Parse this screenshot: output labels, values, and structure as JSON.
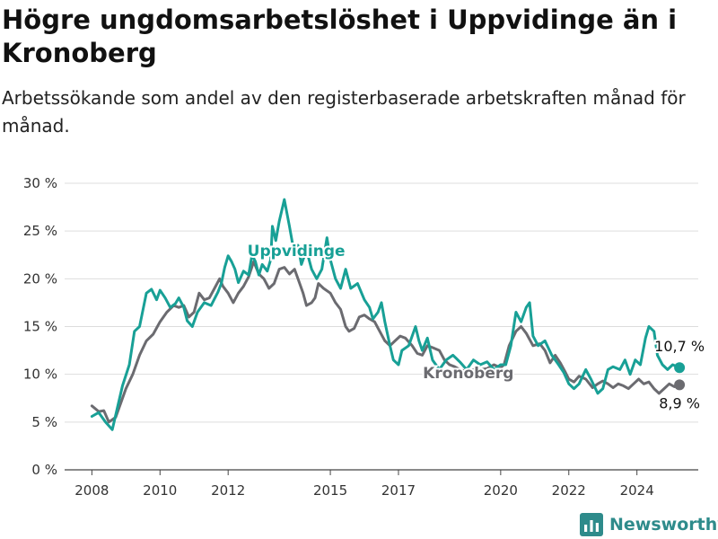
{
  "title": "Högre ungdomsarbetslöshet i Uppvidinge än i Kronoberg",
  "subtitle": "Arbetssökande som andel av den registerbaserade arbetskraften månad för månad.",
  "brand": {
    "name": "Newsworthy",
    "logo_icon": "bar-chart-logo-icon"
  },
  "colors": {
    "uppvidinge": "#18a096",
    "kronoberg": "#6b6b70",
    "grid": "#dddddd",
    "axis": "#444444"
  },
  "chart_data": {
    "type": "line",
    "ylim": [
      0,
      30
    ],
    "xlim": [
      2007.2,
      2025.8
    ],
    "grid": true,
    "yticks": [
      {
        "value": 0,
        "label": "0 %"
      },
      {
        "value": 5,
        "label": "5 %"
      },
      {
        "value": 10,
        "label": "10 %"
      },
      {
        "value": 15,
        "label": "15 %"
      },
      {
        "value": 20,
        "label": "20 %"
      },
      {
        "value": 25,
        "label": "25 %"
      },
      {
        "value": 30,
        "label": "30 %"
      }
    ],
    "xticks": [
      {
        "value": 2008,
        "label": "2008"
      },
      {
        "value": 2010,
        "label": "2010"
      },
      {
        "value": 2012,
        "label": "2012"
      },
      {
        "value": 2015,
        "label": "2015"
      },
      {
        "value": 2017,
        "label": "2017"
      },
      {
        "value": 2020,
        "label": "2020"
      },
      {
        "value": 2022,
        "label": "2022"
      },
      {
        "value": 2024,
        "label": "2024"
      }
    ],
    "series": [
      {
        "name": "Uppvidinge",
        "label_at": [
          2014.0,
          22.4
        ],
        "end_label": "10,7 %",
        "end_value": 10.7,
        "points": [
          [
            2008.0,
            5.6
          ],
          [
            2008.2,
            6.0
          ],
          [
            2008.4,
            5.0
          ],
          [
            2008.6,
            4.2
          ],
          [
            2008.75,
            6.5
          ],
          [
            2008.9,
            8.8
          ],
          [
            2009.1,
            11.0
          ],
          [
            2009.25,
            14.5
          ],
          [
            2009.4,
            15.0
          ],
          [
            2009.6,
            18.5
          ],
          [
            2009.75,
            18.9
          ],
          [
            2009.9,
            17.8
          ],
          [
            2010.0,
            18.8
          ],
          [
            2010.15,
            18.0
          ],
          [
            2010.3,
            17.0
          ],
          [
            2010.45,
            17.4
          ],
          [
            2010.55,
            18.0
          ],
          [
            2010.7,
            17.0
          ],
          [
            2010.8,
            15.6
          ],
          [
            2010.95,
            15.0
          ],
          [
            2011.1,
            16.5
          ],
          [
            2011.3,
            17.5
          ],
          [
            2011.5,
            17.2
          ],
          [
            2011.7,
            18.6
          ],
          [
            2011.8,
            19.5
          ],
          [
            2011.9,
            21.2
          ],
          [
            2012.0,
            22.4
          ],
          [
            2012.1,
            21.8
          ],
          [
            2012.2,
            21.0
          ],
          [
            2012.3,
            19.6
          ],
          [
            2012.45,
            20.8
          ],
          [
            2012.6,
            20.4
          ],
          [
            2012.7,
            22.5
          ],
          [
            2012.8,
            21.8
          ],
          [
            2012.9,
            20.4
          ],
          [
            2013.0,
            21.5
          ],
          [
            2013.15,
            20.8
          ],
          [
            2013.25,
            22.0
          ],
          [
            2013.3,
            25.5
          ],
          [
            2013.4,
            24.0
          ],
          [
            2013.5,
            26.0
          ],
          [
            2013.65,
            28.3
          ],
          [
            2013.8,
            25.5
          ],
          [
            2013.95,
            22.5
          ],
          [
            2014.05,
            23.5
          ],
          [
            2014.15,
            21.5
          ],
          [
            2014.3,
            23.0
          ],
          [
            2014.45,
            21.0
          ],
          [
            2014.6,
            20.0
          ],
          [
            2014.75,
            21.0
          ],
          [
            2014.9,
            24.3
          ],
          [
            2015.0,
            22.0
          ],
          [
            2015.15,
            20.0
          ],
          [
            2015.3,
            19.0
          ],
          [
            2015.45,
            21.0
          ],
          [
            2015.6,
            19.0
          ],
          [
            2015.8,
            19.5
          ],
          [
            2016.0,
            17.8
          ],
          [
            2016.15,
            17.0
          ],
          [
            2016.25,
            15.8
          ],
          [
            2016.4,
            16.5
          ],
          [
            2016.5,
            17.5
          ],
          [
            2016.6,
            15.5
          ],
          [
            2016.75,
            13.0
          ],
          [
            2016.85,
            11.5
          ],
          [
            2017.0,
            11.0
          ],
          [
            2017.1,
            12.5
          ],
          [
            2017.3,
            13.0
          ],
          [
            2017.5,
            15.0
          ],
          [
            2017.6,
            13.5
          ],
          [
            2017.7,
            12.5
          ],
          [
            2017.85,
            13.8
          ],
          [
            2018.0,
            11.5
          ],
          [
            2018.2,
            10.5
          ],
          [
            2018.4,
            11.5
          ],
          [
            2018.6,
            12.0
          ],
          [
            2018.8,
            11.3
          ],
          [
            2019.0,
            10.5
          ],
          [
            2019.2,
            11.5
          ],
          [
            2019.4,
            11.0
          ],
          [
            2019.6,
            11.3
          ],
          [
            2019.8,
            10.5
          ],
          [
            2020.0,
            11.0
          ],
          [
            2020.15,
            11.0
          ],
          [
            2020.3,
            13.0
          ],
          [
            2020.45,
            16.5
          ],
          [
            2020.6,
            15.5
          ],
          [
            2020.75,
            17.0
          ],
          [
            2020.85,
            17.5
          ],
          [
            2020.95,
            14.0
          ],
          [
            2021.1,
            13.0
          ],
          [
            2021.3,
            13.5
          ],
          [
            2021.5,
            12.0
          ],
          [
            2021.7,
            11.0
          ],
          [
            2021.85,
            10.2
          ],
          [
            2022.0,
            9.0
          ],
          [
            2022.15,
            8.5
          ],
          [
            2022.3,
            9.0
          ],
          [
            2022.5,
            10.5
          ],
          [
            2022.65,
            9.5
          ],
          [
            2022.85,
            8.0
          ],
          [
            2023.0,
            8.5
          ],
          [
            2023.15,
            10.5
          ],
          [
            2023.3,
            10.8
          ],
          [
            2023.5,
            10.5
          ],
          [
            2023.65,
            11.5
          ],
          [
            2023.8,
            10.0
          ],
          [
            2023.95,
            11.5
          ],
          [
            2024.1,
            11.0
          ],
          [
            2024.25,
            13.8
          ],
          [
            2024.35,
            15.0
          ],
          [
            2024.5,
            14.5
          ],
          [
            2024.6,
            12.0
          ],
          [
            2024.75,
            11.0
          ],
          [
            2024.9,
            10.5
          ],
          [
            2025.05,
            11.0
          ],
          [
            2025.25,
            10.7
          ]
        ]
      },
      {
        "name": "Kronoberg",
        "label_at": [
          2019.05,
          9.6
        ],
        "end_label": "8,9 %",
        "end_value": 8.9,
        "points": [
          [
            2008.0,
            6.7
          ],
          [
            2008.2,
            6.1
          ],
          [
            2008.35,
            6.2
          ],
          [
            2008.5,
            5.0
          ],
          [
            2008.7,
            5.5
          ],
          [
            2008.85,
            7.0
          ],
          [
            2009.0,
            8.5
          ],
          [
            2009.2,
            10.0
          ],
          [
            2009.4,
            12.0
          ],
          [
            2009.6,
            13.5
          ],
          [
            2009.8,
            14.2
          ],
          [
            2010.0,
            15.5
          ],
          [
            2010.2,
            16.5
          ],
          [
            2010.4,
            17.2
          ],
          [
            2010.55,
            17.0
          ],
          [
            2010.7,
            17.2
          ],
          [
            2010.85,
            16.0
          ],
          [
            2011.0,
            16.5
          ],
          [
            2011.15,
            18.5
          ],
          [
            2011.3,
            17.8
          ],
          [
            2011.45,
            18.0
          ],
          [
            2011.6,
            19.0
          ],
          [
            2011.75,
            20.0
          ],
          [
            2011.85,
            19.2
          ],
          [
            2012.0,
            18.5
          ],
          [
            2012.15,
            17.5
          ],
          [
            2012.3,
            18.5
          ],
          [
            2012.45,
            19.2
          ],
          [
            2012.6,
            20.2
          ],
          [
            2012.75,
            21.8
          ],
          [
            2012.9,
            20.5
          ],
          [
            2013.05,
            20.0
          ],
          [
            2013.2,
            19.0
          ],
          [
            2013.35,
            19.5
          ],
          [
            2013.5,
            21.0
          ],
          [
            2013.65,
            21.2
          ],
          [
            2013.8,
            20.5
          ],
          [
            2013.95,
            21.0
          ],
          [
            2014.05,
            20.0
          ],
          [
            2014.2,
            18.5
          ],
          [
            2014.3,
            17.2
          ],
          [
            2014.45,
            17.5
          ],
          [
            2014.55,
            18.0
          ],
          [
            2014.65,
            19.5
          ],
          [
            2014.8,
            19.0
          ],
          [
            2015.0,
            18.5
          ],
          [
            2015.15,
            17.5
          ],
          [
            2015.3,
            16.8
          ],
          [
            2015.45,
            15.0
          ],
          [
            2015.55,
            14.5
          ],
          [
            2015.7,
            14.8
          ],
          [
            2015.85,
            16.0
          ],
          [
            2016.0,
            16.2
          ],
          [
            2016.15,
            15.8
          ],
          [
            2016.3,
            15.5
          ],
          [
            2016.45,
            14.5
          ],
          [
            2016.6,
            13.5
          ],
          [
            2016.75,
            13.0
          ],
          [
            2016.9,
            13.5
          ],
          [
            2017.05,
            14.0
          ],
          [
            2017.2,
            13.8
          ],
          [
            2017.4,
            13.0
          ],
          [
            2017.55,
            12.2
          ],
          [
            2017.7,
            12.0
          ],
          [
            2017.85,
            13.0
          ],
          [
            2018.0,
            12.8
          ],
          [
            2018.2,
            12.5
          ],
          [
            2018.35,
            11.5
          ],
          [
            2018.5,
            11.0
          ],
          [
            2018.65,
            10.8
          ],
          [
            2018.8,
            10.5
          ],
          [
            2019.0,
            10.3
          ],
          [
            2019.2,
            10.5
          ],
          [
            2019.4,
            10.5
          ],
          [
            2019.6,
            10.6
          ],
          [
            2019.8,
            11.0
          ],
          [
            2020.0,
            10.7
          ],
          [
            2020.1,
            11.0
          ],
          [
            2020.25,
            13.0
          ],
          [
            2020.45,
            14.5
          ],
          [
            2020.6,
            15.0
          ],
          [
            2020.75,
            14.3
          ],
          [
            2020.95,
            13.0
          ],
          [
            2021.15,
            13.2
          ],
          [
            2021.3,
            12.5
          ],
          [
            2021.45,
            11.2
          ],
          [
            2021.6,
            12.0
          ],
          [
            2021.75,
            11.2
          ],
          [
            2021.9,
            10.2
          ],
          [
            2022.0,
            9.5
          ],
          [
            2022.15,
            9.2
          ],
          [
            2022.3,
            9.8
          ],
          [
            2022.5,
            9.5
          ],
          [
            2022.7,
            8.6
          ],
          [
            2022.85,
            9.0
          ],
          [
            2023.0,
            9.3
          ],
          [
            2023.15,
            9.0
          ],
          [
            2023.3,
            8.6
          ],
          [
            2023.45,
            9.0
          ],
          [
            2023.6,
            8.8
          ],
          [
            2023.75,
            8.5
          ],
          [
            2023.9,
            9.0
          ],
          [
            2024.05,
            9.5
          ],
          [
            2024.2,
            9.0
          ],
          [
            2024.35,
            9.2
          ],
          [
            2024.5,
            8.5
          ],
          [
            2024.65,
            8.0
          ],
          [
            2024.8,
            8.5
          ],
          [
            2024.95,
            9.0
          ],
          [
            2025.1,
            8.7
          ],
          [
            2025.25,
            8.9
          ]
        ]
      }
    ]
  }
}
